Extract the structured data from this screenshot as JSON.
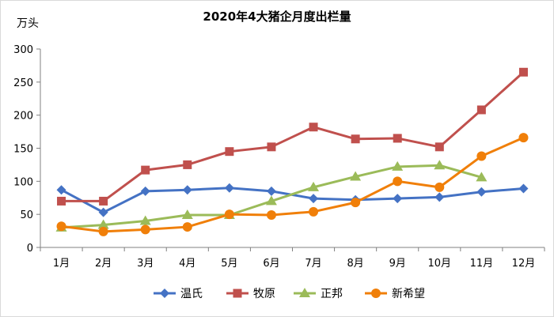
{
  "chart_data": {
    "type": "line",
    "title": "2020年4大猪企月度出栏量",
    "ylabel": "万头",
    "xlabel": "",
    "categories": [
      "1月",
      "2月",
      "3月",
      "4月",
      "5月",
      "6月",
      "7月",
      "8月",
      "9月",
      "10月",
      "11月",
      "12月"
    ],
    "ylim": [
      0,
      300
    ],
    "yticks": [
      0,
      50,
      100,
      150,
      200,
      250,
      300
    ],
    "grid": false,
    "legend_position": "bottom",
    "series": [
      {
        "name": "温氏",
        "color": "#4472C4",
        "marker": "diamond",
        "values": [
          87,
          53,
          85,
          87,
          90,
          85,
          74,
          72,
          74,
          76,
          84,
          89
        ]
      },
      {
        "name": "牧原",
        "color": "#C0504D",
        "marker": "square",
        "values": [
          70,
          70,
          117,
          125,
          145,
          152,
          182,
          164,
          165,
          152,
          208,
          265
        ]
      },
      {
        "name": "正邦",
        "color": "#9BBB59",
        "marker": "triangle",
        "values": [
          30,
          34,
          40,
          49,
          49,
          70,
          91,
          107,
          122,
          124,
          106,
          null
        ]
      },
      {
        "name": "新希望",
        "color": "#F07F09",
        "marker": "circle",
        "values": [
          32,
          24,
          27,
          31,
          50,
          49,
          54,
          68,
          100,
          91,
          138,
          166
        ]
      }
    ]
  }
}
